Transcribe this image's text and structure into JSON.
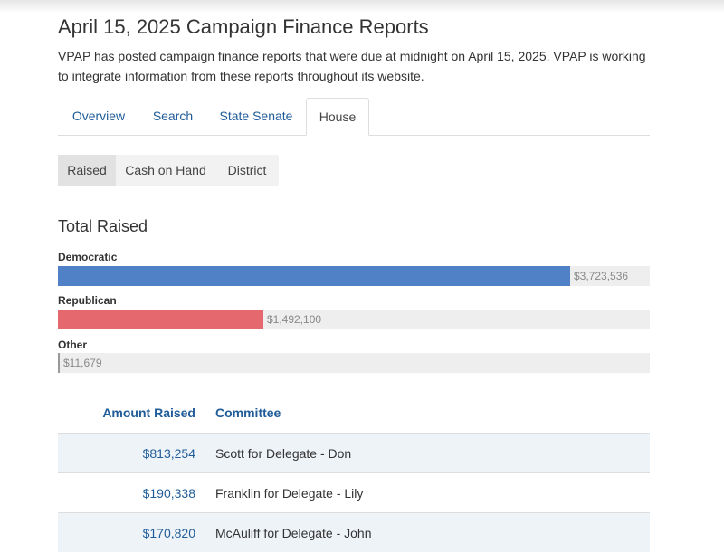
{
  "page": {
    "title": "April 15, 2025 Campaign Finance Reports",
    "intro": "VPAP has posted campaign finance reports that were due at midnight on April 15, 2025. VPAP is working to integrate information from these reports throughout its website."
  },
  "tabs": [
    {
      "label": "Overview"
    },
    {
      "label": "Search"
    },
    {
      "label": "State Senate"
    },
    {
      "label": "House",
      "active": true
    }
  ],
  "pills": [
    {
      "label": "Raised",
      "active": true
    },
    {
      "label": "Cash on Hand"
    },
    {
      "label": "District"
    }
  ],
  "section_title": "Total Raised",
  "colors": {
    "democratic": "#5081c6",
    "republican": "#e4686d",
    "other": "#999999",
    "link": "#1f5c99"
  },
  "chart_data": {
    "type": "bar",
    "title": "Total Raised",
    "orientation": "horizontal",
    "categories": [
      "Democratic",
      "Republican",
      "Other"
    ],
    "values": [
      3723536,
      1492100,
      11679
    ],
    "value_labels": [
      "$3,723,536",
      "$1,492,100",
      "$11,679"
    ],
    "xlim": [
      0,
      4300000
    ]
  },
  "table": {
    "headers": {
      "amount": "Amount Raised",
      "committee": "Committee"
    },
    "rows": [
      {
        "amount": "$813,254",
        "committee": "Scott for Delegate - Don"
      },
      {
        "amount": "$190,338",
        "committee": "Franklin for Delegate - Lily"
      },
      {
        "amount": "$170,820",
        "committee": "McAuliff for Delegate - John"
      }
    ]
  }
}
